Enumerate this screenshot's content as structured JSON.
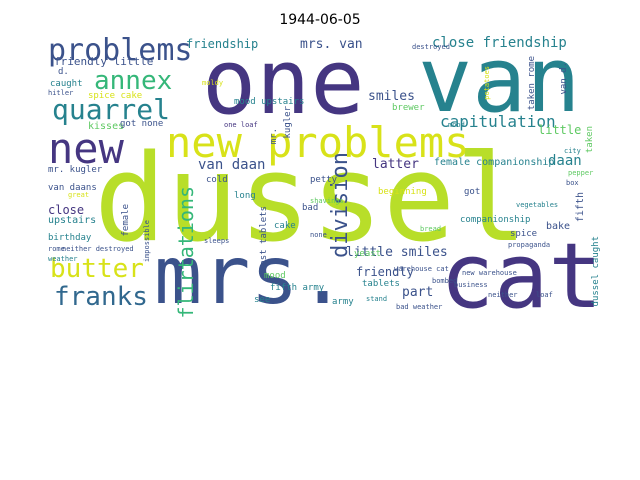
{
  "title": "1944-06-05",
  "words": [
    "dussel",
    "one",
    "van",
    "cat",
    "mrs.",
    "new problems",
    "new",
    "problems",
    "annex",
    "quarrel",
    "butter",
    "franks",
    "division",
    "flirtations",
    "friendship",
    "mrs. van",
    "close friendship",
    "friendly little",
    "capitulation",
    "smiles",
    "little",
    "van daan",
    "latter",
    "female companionship",
    "daan",
    "little smiles",
    "friendly",
    "part",
    "mr. kugler",
    "close",
    "van daans",
    "upstairs",
    "birthday",
    "kisses",
    "got none",
    "spice cake",
    "caught",
    "hitler",
    "d.",
    "mood upstairs",
    "one loaf",
    "cold",
    "long",
    "petty",
    "beginning",
    "got",
    "companionship",
    "bake",
    "yeast",
    "fifth",
    "spice",
    "propaganda",
    "army",
    "tablets",
    "bad weather",
    "neither",
    "loaf",
    "dussel caught",
    "female",
    "yeast tablets",
    "cake",
    "mood",
    "fifth army",
    "see",
    "bad",
    "rome",
    "neither destroyed",
    "destroyed",
    "taken rome",
    "taken",
    "city",
    "vegetables",
    "box",
    "pepper",
    "business",
    "new warehouse",
    "warehouse cat",
    "bread",
    "bombed",
    "stand",
    "shavings",
    "brewer",
    "potatoes",
    "moldy",
    "great",
    "sleeps",
    "impossible",
    "mr.",
    "kugler",
    "none",
    "mood",
    "van d.",
    "hellen",
    "weather"
  ]
}
